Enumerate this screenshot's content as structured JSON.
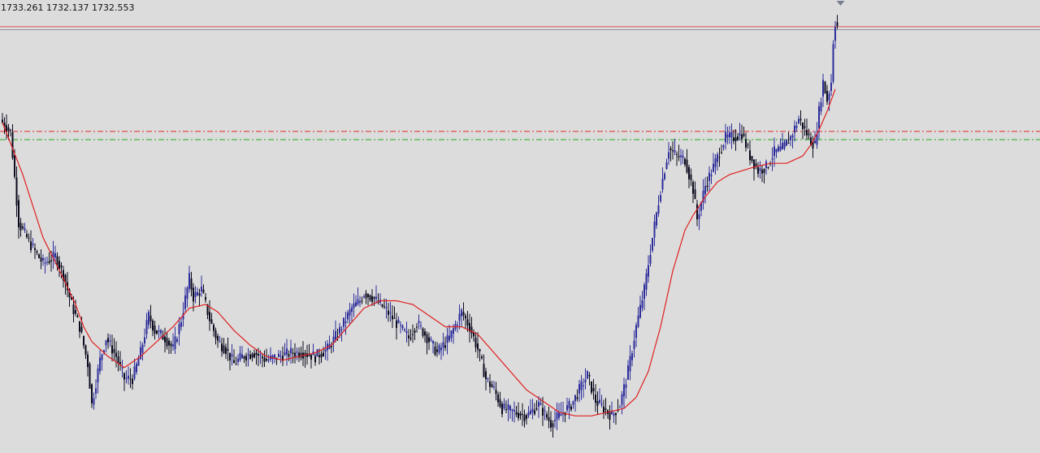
{
  "header": {
    "ohlc_readout": "1733.261 1732.137 1732.553"
  },
  "colors": {
    "background": "#dcdcdc",
    "candle_bull": "#2d2d9b",
    "candle_bear": "#0a0a1e",
    "moving_average": "#e02020",
    "level_red_solid": "#e05050",
    "level_grey_solid": "#8c8ca8",
    "level_red_dashdot": "#e02a2a",
    "level_green_dashdot": "#22aa22",
    "marker": "#7a8090"
  },
  "chart_data": {
    "type": "candlestick",
    "title": "",
    "xlabel": "",
    "ylabel": "",
    "grid": false,
    "ylim": [
      1675.0,
      1736.0
    ],
    "marker_icon": "down-triangle-icon",
    "horizontal_levels": [
      {
        "price": 1732.4,
        "style": "solid",
        "color": "#e05050"
      },
      {
        "price": 1732.0,
        "style": "solid",
        "color": "#8c8ca8"
      },
      {
        "price": 1718.3,
        "style": "dashdot",
        "color": "#e02a2a"
      },
      {
        "price": 1717.2,
        "style": "dashdot",
        "color": "#22aa22"
      }
    ],
    "price_anchors": [
      [
        0,
        1719.5
      ],
      [
        4,
        1718.2
      ],
      [
        8,
        1706.0
      ],
      [
        14,
        1703.0
      ],
      [
        20,
        1700.5
      ],
      [
        26,
        1701.5
      ],
      [
        30,
        1699.0
      ],
      [
        34,
        1695.0
      ],
      [
        38,
        1692.0
      ],
      [
        42,
        1687.0
      ],
      [
        44,
        1681.5
      ],
      [
        48,
        1687.5
      ],
      [
        51,
        1690.5
      ],
      [
        56,
        1688.0
      ],
      [
        60,
        1685.0
      ],
      [
        64,
        1685.0
      ],
      [
        68,
        1688.5
      ],
      [
        72,
        1693.5
      ],
      [
        75,
        1691.5
      ],
      [
        80,
        1690.5
      ],
      [
        84,
        1689.0
      ],
      [
        88,
        1693.0
      ],
      [
        92,
        1698.5
      ],
      [
        94,
        1696.0
      ],
      [
        98,
        1697.0
      ],
      [
        102,
        1693.0
      ],
      [
        106,
        1690.0
      ],
      [
        110,
        1689.0
      ],
      [
        114,
        1687.0
      ],
      [
        118,
        1688.0
      ],
      [
        124,
        1688.5
      ],
      [
        130,
        1687.5
      ],
      [
        136,
        1688.0
      ],
      [
        142,
        1688.5
      ],
      [
        148,
        1688.5
      ],
      [
        154,
        1688.0
      ],
      [
        160,
        1689.0
      ],
      [
        166,
        1691.5
      ],
      [
        172,
        1694.5
      ],
      [
        176,
        1695.5
      ],
      [
        178,
        1696.5
      ],
      [
        182,
        1696.0
      ],
      [
        188,
        1694.5
      ],
      [
        194,
        1692.5
      ],
      [
        200,
        1690.5
      ],
      [
        204,
        1692.5
      ],
      [
        208,
        1691.0
      ],
      [
        214,
        1688.5
      ],
      [
        220,
        1690.5
      ],
      [
        226,
        1694.0
      ],
      [
        230,
        1692.0
      ],
      [
        234,
        1689.0
      ],
      [
        238,
        1685.0
      ],
      [
        242,
        1683.5
      ],
      [
        246,
        1681.0
      ],
      [
        252,
        1680.5
      ],
      [
        258,
        1680.0
      ],
      [
        264,
        1681.5
      ],
      [
        270,
        1679.0
      ],
      [
        276,
        1680.5
      ],
      [
        280,
        1681.5
      ],
      [
        284,
        1683.5
      ],
      [
        288,
        1685.5
      ],
      [
        292,
        1682.0
      ],
      [
        296,
        1681.0
      ],
      [
        300,
        1680.0
      ],
      [
        304,
        1681.5
      ],
      [
        308,
        1686.0
      ],
      [
        312,
        1692.0
      ],
      [
        316,
        1697.0
      ],
      [
        320,
        1704.0
      ],
      [
        324,
        1710.5
      ],
      [
        328,
        1716.0
      ],
      [
        332,
        1715.0
      ],
      [
        336,
        1714.5
      ],
      [
        340,
        1710.5
      ],
      [
        342,
        1706.5
      ],
      [
        346,
        1711.0
      ],
      [
        350,
        1713.5
      ],
      [
        356,
        1717.5
      ],
      [
        360,
        1717.5
      ],
      [
        364,
        1718.0
      ],
      [
        368,
        1715.0
      ],
      [
        372,
        1713.0
      ],
      [
        376,
        1713.5
      ],
      [
        380,
        1715.5
      ],
      [
        384,
        1716.0
      ],
      [
        388,
        1717.5
      ],
      [
        392,
        1720.0
      ],
      [
        396,
        1718.0
      ],
      [
        398,
        1717.0
      ],
      [
        400,
        1716.5
      ],
      [
        402,
        1721.0
      ],
      [
        404,
        1725.0
      ],
      [
        406,
        1722.5
      ],
      [
        408,
        1725.0
      ],
      [
        409,
        1730.5
      ],
      [
        410,
        1733.0
      ],
      [
        411,
        1732.5
      ]
    ],
    "ma_anchors": [
      [
        0,
        1719.5
      ],
      [
        10,
        1712.5
      ],
      [
        20,
        1704.0
      ],
      [
        30,
        1698.5
      ],
      [
        36,
        1695.0
      ],
      [
        40,
        1692.0
      ],
      [
        44,
        1690.0
      ],
      [
        52,
        1688.0
      ],
      [
        60,
        1686.5
      ],
      [
        68,
        1688.0
      ],
      [
        76,
        1690.0
      ],
      [
        84,
        1692.0
      ],
      [
        92,
        1694.5
      ],
      [
        100,
        1695.0
      ],
      [
        106,
        1694.0
      ],
      [
        114,
        1691.5
      ],
      [
        122,
        1689.5
      ],
      [
        130,
        1688.0
      ],
      [
        138,
        1687.5
      ],
      [
        146,
        1688.0
      ],
      [
        154,
        1688.5
      ],
      [
        162,
        1689.5
      ],
      [
        170,
        1692.0
      ],
      [
        178,
        1694.5
      ],
      [
        186,
        1695.5
      ],
      [
        194,
        1695.5
      ],
      [
        202,
        1695.0
      ],
      [
        210,
        1693.5
      ],
      [
        218,
        1692.0
      ],
      [
        226,
        1692.0
      ],
      [
        234,
        1691.0
      ],
      [
        242,
        1688.5
      ],
      [
        250,
        1686.0
      ],
      [
        258,
        1683.5
      ],
      [
        266,
        1682.0
      ],
      [
        274,
        1680.5
      ],
      [
        282,
        1680.0
      ],
      [
        290,
        1680.0
      ],
      [
        298,
        1680.5
      ],
      [
        306,
        1681.0
      ],
      [
        312,
        1682.5
      ],
      [
        318,
        1686.0
      ],
      [
        324,
        1692.0
      ],
      [
        330,
        1699.5
      ],
      [
        336,
        1705.0
      ],
      [
        340,
        1707.0
      ],
      [
        346,
        1709.5
      ],
      [
        352,
        1711.5
      ],
      [
        358,
        1712.5
      ],
      [
        364,
        1713.0
      ],
      [
        370,
        1713.5
      ],
      [
        378,
        1714.0
      ],
      [
        386,
        1714.0
      ],
      [
        394,
        1715.0
      ],
      [
        398,
        1716.5
      ],
      [
        402,
        1718.5
      ],
      [
        406,
        1721.0
      ],
      [
        410,
        1724.0
      ]
    ]
  }
}
